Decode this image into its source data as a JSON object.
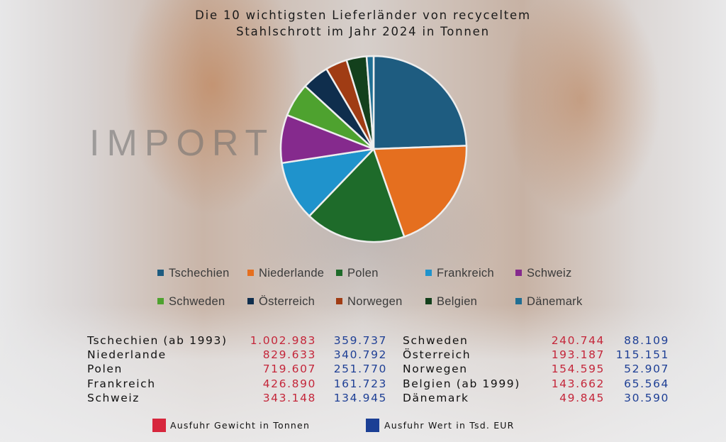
{
  "chart_data": {
    "type": "pie",
    "title_line1": "Die 10 wichtigsten Lieferländer von recyceltem",
    "title_line2": "Stahlschrott im Jahr 2024 in Tonnen",
    "watermark": "IMPORT",
    "categories": [
      "Tschechien",
      "Niederlande",
      "Polen",
      "Frankreich",
      "Schweiz",
      "Schweden",
      "Österreich",
      "Norwegen",
      "Belgien",
      "Dänemark"
    ],
    "values": [
      1002983,
      829633,
      719607,
      426890,
      343148,
      240744,
      193187,
      154595,
      143662,
      49845
    ],
    "colors": [
      "#1e5c80",
      "#e56f1f",
      "#1e6b2a",
      "#1f93cc",
      "#852a8d",
      "#4ea22f",
      "#0f2e4d",
      "#a03c14",
      "#13401c",
      "#1f6e93"
    ],
    "legend": {
      "items": [
        "Tschechien",
        "Niederlande",
        "Polen",
        "Frankreich",
        "Schweiz",
        "Schweden",
        "Österreich",
        "Norwegen",
        "Belgien",
        "Dänemark"
      ]
    }
  },
  "table": {
    "rows_left": [
      {
        "name": "Tschechien (ab 1993)",
        "weight": "1.002.983",
        "value": "359.737"
      },
      {
        "name": "Niederlande",
        "weight": "829.633",
        "value": "340.792"
      },
      {
        "name": "Polen",
        "weight": "719.607",
        "value": "251.770"
      },
      {
        "name": "Frankreich",
        "weight": "426.890",
        "value": "161.723"
      },
      {
        "name": "Schweiz",
        "weight": "343.148",
        "value": "134.945"
      }
    ],
    "rows_right": [
      {
        "name": "Schweden",
        "weight": "240.744",
        "value": "88.109"
      },
      {
        "name": "Österreich",
        "weight": "193.187",
        "value": "115.151"
      },
      {
        "name": "Norwegen",
        "weight": "154.595",
        "value": "52.907"
      },
      {
        "name": "Belgien (ab 1999)",
        "weight": "143.662",
        "value": "65.564"
      },
      {
        "name": "Dänemark",
        "weight": "49.845",
        "value": "30.590"
      }
    ]
  },
  "bottom_legend": {
    "weight_label": "Ausfuhr Gewicht in Tonnen",
    "value_label": "Ausfuhr Wert in Tsd. EUR",
    "weight_color": "#d7263d",
    "value_color": "#1b3f95"
  }
}
